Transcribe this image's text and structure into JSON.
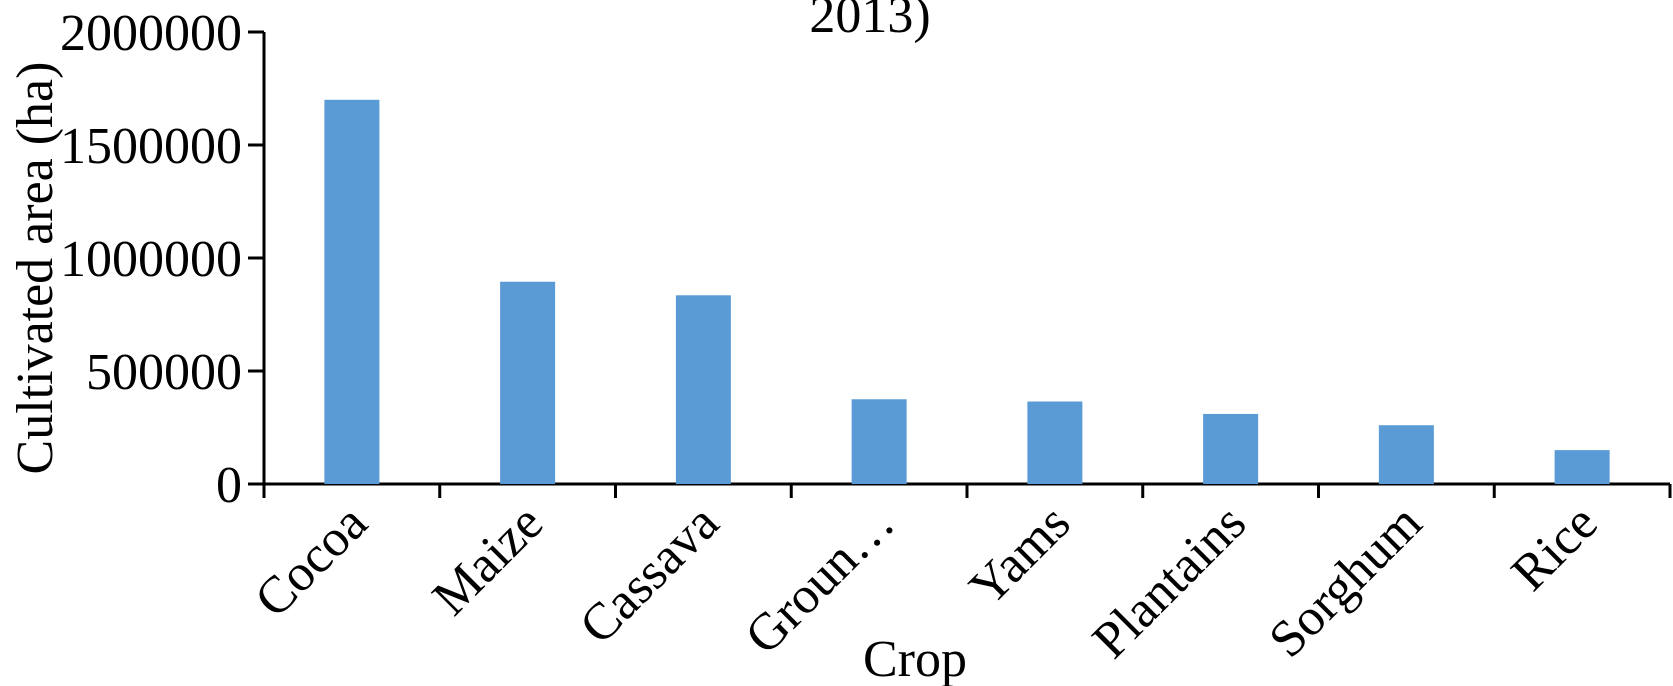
{
  "chart_data": {
    "type": "bar",
    "title": "2013)",
    "xlabel": "Crop",
    "ylabel": "Cultivated area (ha)",
    "categories": [
      "Cocoa",
      "Maize",
      "Cassava",
      "Groun…",
      "Yams",
      "Plantains",
      "Sorghum",
      "Rice"
    ],
    "series": [
      {
        "values": [
          1700000,
          895000,
          835000,
          375000,
          365000,
          310000,
          260000,
          150000
        ]
      }
    ],
    "ylim": [
      0,
      2000000
    ],
    "yticks": [
      "0",
      "500000",
      "1000000",
      "1500000",
      "2000000"
    ],
    "grid": false,
    "legend": "none",
    "bar_color": "#5b9bd5"
  }
}
